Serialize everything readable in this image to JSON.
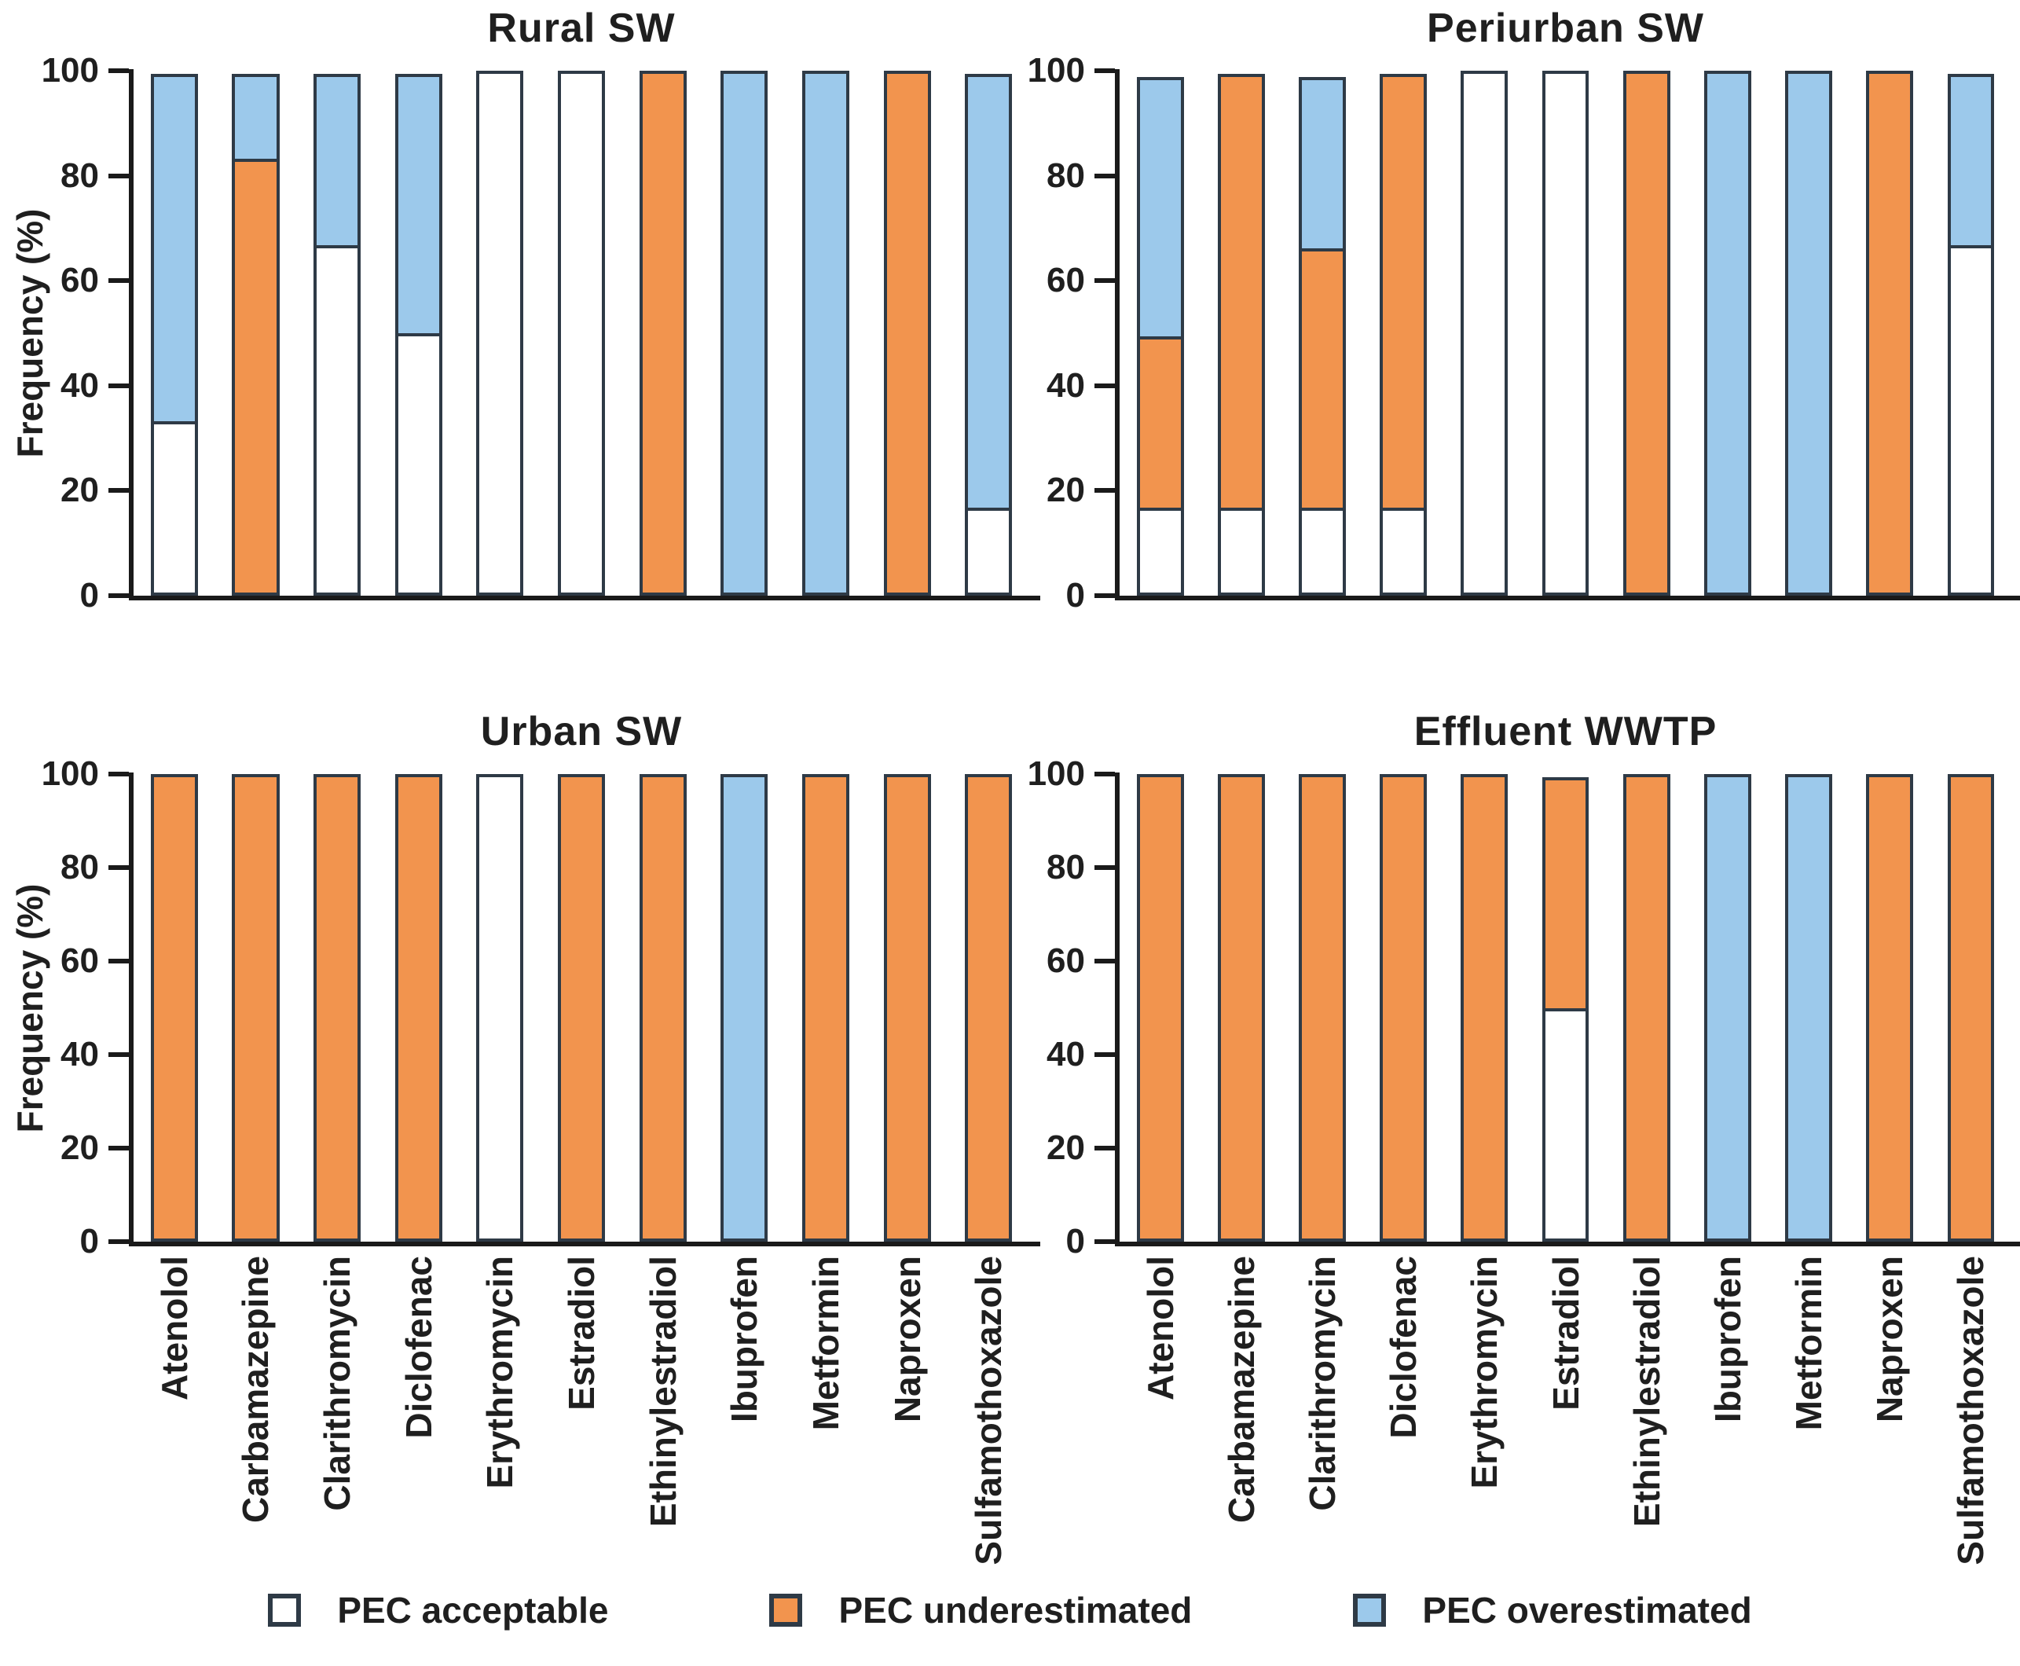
{
  "figure": {
    "ylabel": "Frequency (%)",
    "yticks": [
      0,
      20,
      40,
      60,
      80,
      100
    ],
    "ylim": [
      0,
      100
    ],
    "colors": {
      "acceptable": "#FFFFFF",
      "underestimated": "#F2944E",
      "overestimated": "#9CC9EB",
      "segment_border": "#2E3A46",
      "axis": "#1A1A1A"
    },
    "legend": [
      {
        "key": "acceptable",
        "label": "PEC acceptable"
      },
      {
        "key": "underestimated",
        "label": "PEC underestimated"
      },
      {
        "key": "overestimated",
        "label": "PEC overestimated"
      }
    ]
  },
  "chart_data": [
    {
      "type": "bar",
      "stacked": true,
      "title": "Rural SW",
      "ylabel": "Frequency (%)",
      "ylim": [
        0,
        100
      ],
      "show_xlabels": false,
      "categories": [
        "Atenolol",
        "Carbamazepine",
        "Clarithromycin",
        "Diclofenac",
        "Erythromycin",
        "Estradiol",
        "Ethinylestradiol",
        "Ibuprofen",
        "Metformin",
        "Naproxen",
        "Sulfamothoxazole"
      ],
      "series": [
        {
          "key": "acceptable",
          "name": "PEC acceptable",
          "values": [
            33.3,
            0,
            66.7,
            50,
            100,
            100,
            0,
            0,
            0,
            0,
            16.7
          ]
        },
        {
          "key": "underestimated",
          "name": "PEC underestimated",
          "values": [
            0,
            83.3,
            0,
            0,
            0,
            0,
            100,
            0,
            0,
            100,
            0
          ]
        },
        {
          "key": "overestimated",
          "name": "PEC overestimated",
          "values": [
            66.7,
            16.7,
            33.3,
            50,
            0,
            0,
            0,
            100,
            100,
            0,
            83.3
          ]
        }
      ]
    },
    {
      "type": "bar",
      "stacked": true,
      "title": "Periurban SW",
      "ylabel": "Frequency (%)",
      "ylim": [
        0,
        100
      ],
      "show_xlabels": false,
      "categories": [
        "Atenolol",
        "Carbamazepine",
        "Clarithromycin",
        "Diclofenac",
        "Erythromycin",
        "Estradiol",
        "Ethinylestradiol",
        "Ibuprofen",
        "Metformin",
        "Naproxen",
        "Sulfamothoxazole"
      ],
      "series": [
        {
          "key": "acceptable",
          "name": "PEC acceptable",
          "values": [
            16.7,
            16.7,
            16.7,
            16.7,
            100,
            100,
            0,
            0,
            0,
            0,
            66.7
          ]
        },
        {
          "key": "underestimated",
          "name": "PEC underestimated",
          "values": [
            33.3,
            83.3,
            50,
            83.3,
            0,
            0,
            100,
            0,
            0,
            100,
            0
          ]
        },
        {
          "key": "overestimated",
          "name": "PEC overestimated",
          "values": [
            50,
            0,
            33.3,
            0,
            0,
            0,
            0,
            100,
            100,
            0,
            33.3
          ]
        }
      ]
    },
    {
      "type": "bar",
      "stacked": true,
      "title": "Urban SW",
      "ylabel": "Frequency (%)",
      "ylim": [
        0,
        100
      ],
      "show_xlabels": true,
      "categories": [
        "Atenolol",
        "Carbamazepine",
        "Clarithromycin",
        "Diclofenac",
        "Erythromycin",
        "Estradiol",
        "Ethinylestradiol",
        "Ibuprofen",
        "Metformin",
        "Naproxen",
        "Sulfamothoxazole"
      ],
      "series": [
        {
          "key": "acceptable",
          "name": "PEC acceptable",
          "values": [
            0,
            0,
            0,
            0,
            100,
            0,
            0,
            0,
            0,
            0,
            0
          ]
        },
        {
          "key": "underestimated",
          "name": "PEC underestimated",
          "values": [
            100,
            100,
            100,
            100,
            0,
            100,
            100,
            0,
            100,
            100,
            100
          ]
        },
        {
          "key": "overestimated",
          "name": "PEC overestimated",
          "values": [
            0,
            0,
            0,
            0,
            0,
            0,
            0,
            100,
            0,
            0,
            0
          ]
        }
      ]
    },
    {
      "type": "bar",
      "stacked": true,
      "title": "Effluent WWTP",
      "ylabel": "Frequency (%)",
      "ylim": [
        0,
        100
      ],
      "show_xlabels": true,
      "categories": [
        "Atenolol",
        "Carbamazepine",
        "Clarithromycin",
        "Diclofenac",
        "Erythromycin",
        "Estradiol",
        "Ethinylestradiol",
        "Ibuprofen",
        "Metformin",
        "Naproxen",
        "Sulfamothoxazole"
      ],
      "series": [
        {
          "key": "acceptable",
          "name": "PEC acceptable",
          "values": [
            0,
            0,
            0,
            0,
            0,
            50,
            0,
            0,
            0,
            0,
            0
          ]
        },
        {
          "key": "underestimated",
          "name": "PEC underestimated",
          "values": [
            100,
            100,
            100,
            100,
            100,
            50,
            100,
            0,
            0,
            100,
            100
          ]
        },
        {
          "key": "overestimated",
          "name": "PEC overestimated",
          "values": [
            0,
            0,
            0,
            0,
            0,
            0,
            0,
            100,
            100,
            0,
            0
          ]
        }
      ]
    }
  ]
}
